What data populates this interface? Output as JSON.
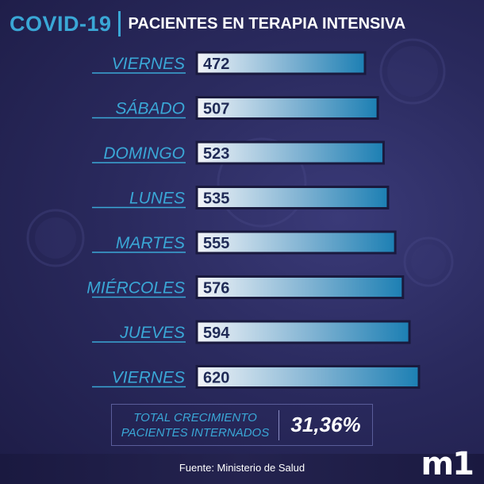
{
  "header": {
    "brand": "COVID-19",
    "title": "PACIENTES EN TERAPIA INTENSIVA"
  },
  "chart_data": {
    "type": "bar",
    "orientation": "horizontal",
    "title": "PACIENTES EN TERAPIA INTENSIVA",
    "categories": [
      "VIERNES",
      "SÁBADO",
      "DOMINGO",
      "LUNES",
      "MARTES",
      "MIÉRCOLES",
      "JUEVES",
      "VIERNES"
    ],
    "values": [
      472,
      507,
      523,
      535,
      555,
      576,
      594,
      620
    ],
    "xlabel": "",
    "ylabel": "",
    "bar_color_start": "#f2f4f8",
    "bar_color_end": "#1c7fb3"
  },
  "summary": {
    "label_line1": "TOTAL CRECIMIENTO",
    "label_line2": "PACIENTES INTERNADOS",
    "value": "31,36%"
  },
  "footer": {
    "source": "Fuente: Ministerio de Salud",
    "logo": "m1"
  },
  "colors": {
    "accent": "#3aa7d6",
    "background": "#2a2a5e"
  }
}
